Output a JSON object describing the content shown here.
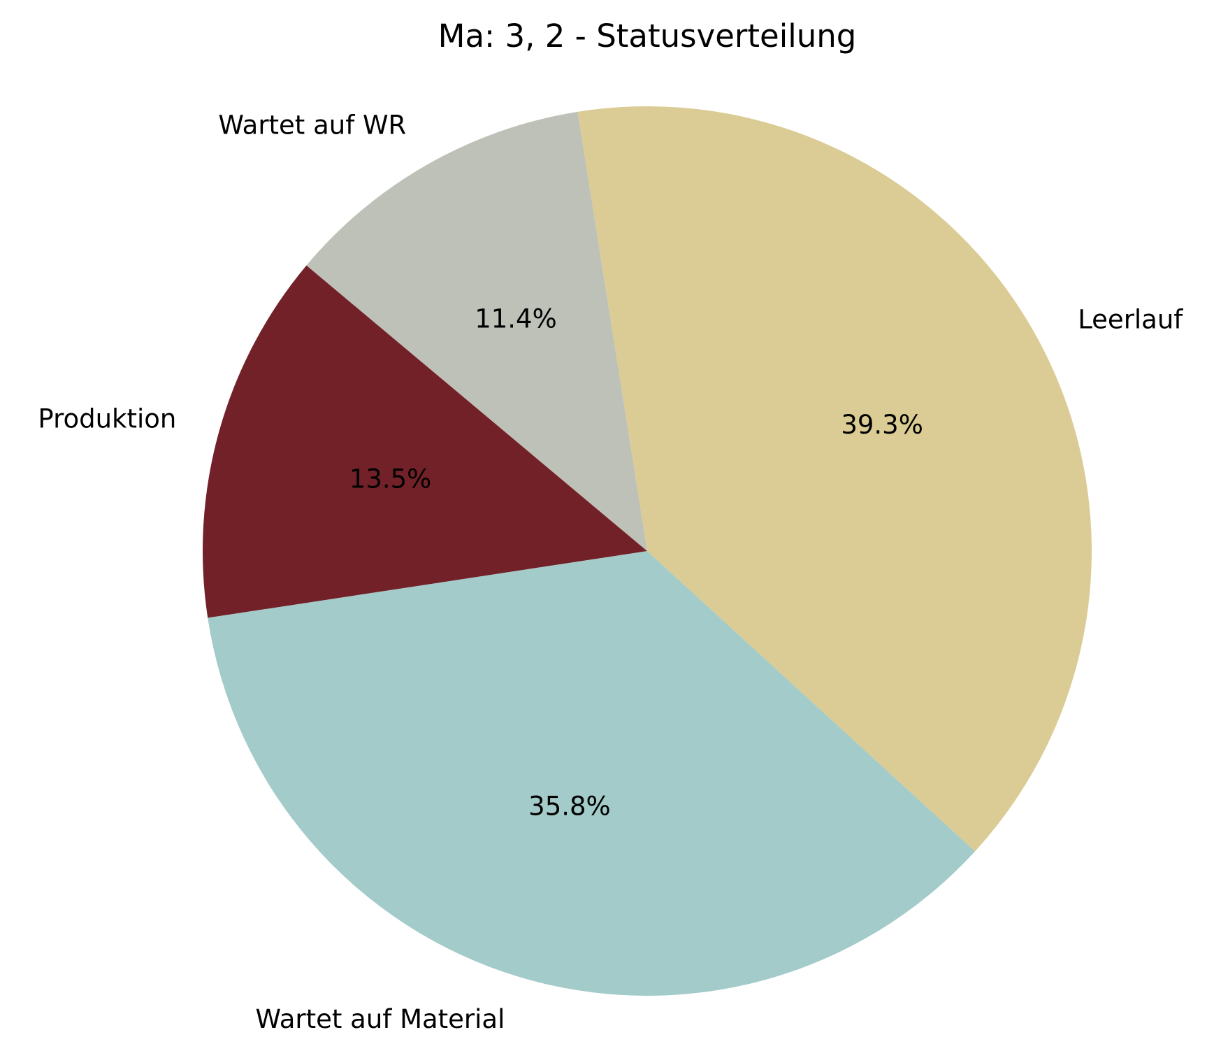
{
  "chart_data": {
    "type": "pie",
    "title": "Ma: 3, 2 - Statusverteilung",
    "slices": [
      {
        "label": "Leerlauf",
        "value": 39.3,
        "pct_label": "39.3%",
        "color": "#dbcc95"
      },
      {
        "label": "Wartet auf Material",
        "value": 35.8,
        "pct_label": "35.8%",
        "color": "#a3cbc9"
      },
      {
        "label": "Produktion",
        "value": 13.5,
        "pct_label": "13.5%",
        "color": "#722128"
      },
      {
        "label": "Wartet auf WR",
        "value": 11.4,
        "pct_label": "11.4%",
        "color": "#bec1b8"
      }
    ],
    "legend": false,
    "grid": false
  }
}
